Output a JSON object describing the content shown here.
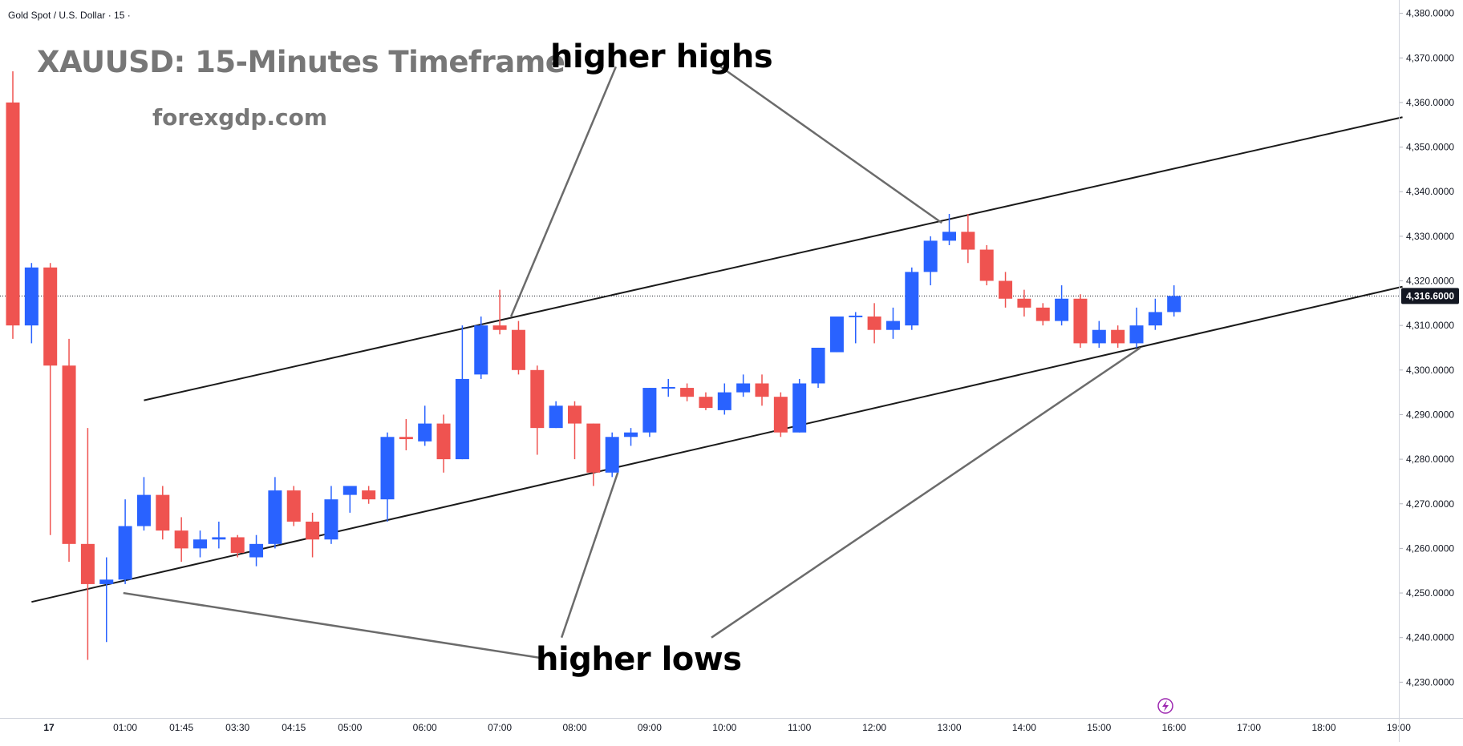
{
  "header": {
    "symbol": "Gold Spot / U.S. Dollar · 15 ·",
    "title": "XAUUSD: 15-Minutes Timeframe",
    "site": "forexgdp.com"
  },
  "annotations": {
    "higher_highs": "higher highs",
    "higher_lows": "higher lows"
  },
  "colors": {
    "up": "#2962ff",
    "down": "#ef5350",
    "last_price_badge": "#131722",
    "text": "#131722"
  },
  "chart_data": {
    "type": "candlestick",
    "timeframe": "15",
    "last_price": 4316.6,
    "last_price_label": "4,316.6000",
    "ylim": [
      4224,
      4386
    ],
    "y_ticks": [
      {
        "value": 4380,
        "label": "4,380.0000"
      },
      {
        "value": 4370,
        "label": "4,370.0000"
      },
      {
        "value": 4360,
        "label": "4,360.0000"
      },
      {
        "value": 4350,
        "label": "4,350.0000"
      },
      {
        "value": 4340,
        "label": "4,340.0000"
      },
      {
        "value": 4330,
        "label": "4,330.0000"
      },
      {
        "value": 4320,
        "label": "4,320.0000"
      },
      {
        "value": 4310,
        "label": "4,310.0000"
      },
      {
        "value": 4300,
        "label": "4,300.0000"
      },
      {
        "value": 4290,
        "label": "4,290.0000"
      },
      {
        "value": 4280,
        "label": "4,280.0000"
      },
      {
        "value": 4270,
        "label": "4,270.0000"
      },
      {
        "value": 4260,
        "label": "4,260.0000"
      },
      {
        "value": 4250,
        "label": "4,250.0000"
      },
      {
        "value": 4240,
        "label": "4,240.0000"
      },
      {
        "value": 4230,
        "label": "4,230.0000"
      }
    ],
    "x_ticks": [
      {
        "index": 0,
        "label": "17"
      },
      {
        "index": 6,
        "label": "01:00"
      },
      {
        "index": 9,
        "label": "01:45"
      },
      {
        "index": 12,
        "label": "03:30"
      },
      {
        "index": 15,
        "label": "04:15"
      },
      {
        "index": 18,
        "label": "05:00"
      },
      {
        "index": 22,
        "label": "06:00"
      },
      {
        "index": 26,
        "label": "07:00"
      },
      {
        "index": 30,
        "label": "08:00"
      },
      {
        "index": 34,
        "label": "09:00"
      },
      {
        "index": 38,
        "label": "10:00"
      },
      {
        "index": 42,
        "label": "11:00"
      },
      {
        "index": 46,
        "label": "12:00"
      },
      {
        "index": 50,
        "label": "13:00"
      },
      {
        "index": 54,
        "label": "14:00"
      },
      {
        "index": 58,
        "label": "15:00"
      },
      {
        "index": 62,
        "label": "16:00"
      },
      {
        "index": 66,
        "label": "17:00"
      },
      {
        "index": 70,
        "label": "18:00"
      },
      {
        "index": 74,
        "label": "19:00"
      }
    ],
    "candles": [
      {
        "o": 4360.0,
        "h": 4367.0,
        "l": 4307.0,
        "c": 4310.0
      },
      {
        "o": 4310.0,
        "h": 4324.0,
        "l": 4306.0,
        "c": 4323.0
      },
      {
        "o": 4323.0,
        "h": 4324.0,
        "l": 4263.0,
        "c": 4301.0
      },
      {
        "o": 4301.0,
        "h": 4307.0,
        "l": 4257.0,
        "c": 4261.0
      },
      {
        "o": 4261.0,
        "h": 4287.0,
        "l": 4235.0,
        "c": 4252.0
      },
      {
        "o": 4252.0,
        "h": 4258.0,
        "l": 4239.0,
        "c": 4253.0
      },
      {
        "o": 4253.0,
        "h": 4271.0,
        "l": 4252.0,
        "c": 4265.0
      },
      {
        "o": 4265.0,
        "h": 4276.0,
        "l": 4264.0,
        "c": 4272.0
      },
      {
        "o": 4272.0,
        "h": 4274.0,
        "l": 4262.0,
        "c": 4264.0
      },
      {
        "o": 4264.0,
        "h": 4267.0,
        "l": 4257.0,
        "c": 4260.0
      },
      {
        "o": 4260.0,
        "h": 4264.0,
        "l": 4258.0,
        "c": 4262.0
      },
      {
        "o": 4262.0,
        "h": 4266.0,
        "l": 4260.0,
        "c": 4262.5
      },
      {
        "o": 4262.5,
        "h": 4263.0,
        "l": 4258.0,
        "c": 4259.0
      },
      {
        "o": 4258.0,
        "h": 4263.0,
        "l": 4256.0,
        "c": 4261.0
      },
      {
        "o": 4261.0,
        "h": 4276.0,
        "l": 4260.0,
        "c": 4273.0
      },
      {
        "o": 4273.0,
        "h": 4274.0,
        "l": 4265.0,
        "c": 4266.0
      },
      {
        "o": 4266.0,
        "h": 4268.0,
        "l": 4258.0,
        "c": 4262.0
      },
      {
        "o": 4262.0,
        "h": 4274.0,
        "l": 4261.0,
        "c": 4271.0
      },
      {
        "o": 4272.0,
        "h": 4274.0,
        "l": 4268.0,
        "c": 4274.0
      },
      {
        "o": 4273.0,
        "h": 4274.0,
        "l": 4270.0,
        "c": 4271.0
      },
      {
        "o": 4271.0,
        "h": 4286.0,
        "l": 4266.0,
        "c": 4285.0
      },
      {
        "o": 4285.0,
        "h": 4289.0,
        "l": 4282.0,
        "c": 4284.5
      },
      {
        "o": 4284.0,
        "h": 4292.0,
        "l": 4283.0,
        "c": 4288.0
      },
      {
        "o": 4288.0,
        "h": 4290.0,
        "l": 4277.0,
        "c": 4280.0
      },
      {
        "o": 4280.0,
        "h": 4310.0,
        "l": 4280.0,
        "c": 4298.0
      },
      {
        "o": 4299.0,
        "h": 4312.0,
        "l": 4298.0,
        "c": 4310.0
      },
      {
        "o": 4310.0,
        "h": 4318.0,
        "l": 4308.0,
        "c": 4309.0
      },
      {
        "o": 4309.0,
        "h": 4311.0,
        "l": 4299.0,
        "c": 4300.0
      },
      {
        "o": 4300.0,
        "h": 4301.0,
        "l": 4281.0,
        "c": 4287.0
      },
      {
        "o": 4287.0,
        "h": 4293.0,
        "l": 4287.0,
        "c": 4292.0
      },
      {
        "o": 4292.0,
        "h": 4293.0,
        "l": 4280.0,
        "c": 4288.0
      },
      {
        "o": 4288.0,
        "h": 4288.0,
        "l": 4274.0,
        "c": 4277.0
      },
      {
        "o": 4277.0,
        "h": 4286.0,
        "l": 4276.0,
        "c": 4285.0
      },
      {
        "o": 4285.0,
        "h": 4287.0,
        "l": 4283.0,
        "c": 4286.0
      },
      {
        "o": 4286.0,
        "h": 4296.0,
        "l": 4285.0,
        "c": 4296.0
      },
      {
        "o": 4296.0,
        "h": 4298.0,
        "l": 4294.0,
        "c": 4296.2
      },
      {
        "o": 4296.0,
        "h": 4297.0,
        "l": 4293.0,
        "c": 4294.0
      },
      {
        "o": 4294.0,
        "h": 4295.0,
        "l": 4291.0,
        "c": 4291.5
      },
      {
        "o": 4291.0,
        "h": 4297.0,
        "l": 4290.0,
        "c": 4295.0
      },
      {
        "o": 4295.0,
        "h": 4299.0,
        "l": 4294.0,
        "c": 4297.0
      },
      {
        "o": 4297.0,
        "h": 4299.0,
        "l": 4292.0,
        "c": 4294.0
      },
      {
        "o": 4294.0,
        "h": 4295.0,
        "l": 4285.0,
        "c": 4286.0
      },
      {
        "o": 4286.0,
        "h": 4298.0,
        "l": 4286.0,
        "c": 4297.0
      },
      {
        "o": 4297.0,
        "h": 4305.0,
        "l": 4296.0,
        "c": 4305.0
      },
      {
        "o": 4304.0,
        "h": 4312.0,
        "l": 4304.0,
        "c": 4312.0
      },
      {
        "o": 4312.0,
        "h": 4313.0,
        "l": 4306.0,
        "c": 4312.2
      },
      {
        "o": 4312.0,
        "h": 4315.0,
        "l": 4306.0,
        "c": 4309.0
      },
      {
        "o": 4309.0,
        "h": 4314.0,
        "l": 4307.0,
        "c": 4311.0
      },
      {
        "o": 4310.0,
        "h": 4323.0,
        "l": 4309.0,
        "c": 4322.0
      },
      {
        "o": 4322.0,
        "h": 4330.0,
        "l": 4319.0,
        "c": 4329.0
      },
      {
        "o": 4329.0,
        "h": 4335.0,
        "l": 4328.0,
        "c": 4331.0
      },
      {
        "o": 4331.0,
        "h": 4335.0,
        "l": 4324.0,
        "c": 4327.0
      },
      {
        "o": 4327.0,
        "h": 4328.0,
        "l": 4319.0,
        "c": 4320.0
      },
      {
        "o": 4320.0,
        "h": 4322.0,
        "l": 4314.0,
        "c": 4316.0
      },
      {
        "o": 4316.0,
        "h": 4318.0,
        "l": 4312.0,
        "c": 4314.0
      },
      {
        "o": 4314.0,
        "h": 4315.0,
        "l": 4310.0,
        "c": 4311.0
      },
      {
        "o": 4311.0,
        "h": 4319.0,
        "l": 4310.0,
        "c": 4316.0
      },
      {
        "o": 4316.0,
        "h": 4317.0,
        "l": 4305.0,
        "c": 4306.0
      },
      {
        "o": 4306.0,
        "h": 4311.0,
        "l": 4305.0,
        "c": 4309.0
      },
      {
        "o": 4309.0,
        "h": 4310.0,
        "l": 4305.0,
        "c": 4306.0
      },
      {
        "o": 4306.0,
        "h": 4314.0,
        "l": 4305.0,
        "c": 4310.0
      },
      {
        "o": 4310.0,
        "h": 4316.0,
        "l": 4309.0,
        "c": 4313.0
      },
      {
        "o": 4313.0,
        "h": 4319.0,
        "l": 4312.0,
        "c": 4316.6
      }
    ],
    "trendlines": [
      {
        "name": "upper-channel-line",
        "x1": 7,
        "y1": 4293.2,
        "x2": 74.2,
        "y2": 4356.7
      },
      {
        "name": "lower-channel-line",
        "x1": 1,
        "y1": 4248.0,
        "x2": 74.2,
        "y2": 4318.7
      }
    ],
    "pointer_lines": [
      {
        "group": "higher_highs",
        "x1": 32.2,
        "y1": 4368.0,
        "x2": 26.6,
        "y2": 4312.0
      },
      {
        "group": "higher_highs",
        "x1": 37.8,
        "y1": 4368.0,
        "x2": 49.6,
        "y2": 4333.0
      },
      {
        "group": "higher_lows",
        "x1": 5.9,
        "y1": 4250.0,
        "x2": 28.1,
        "y2": 4235.5
      },
      {
        "group": "higher_lows",
        "x1": 29.3,
        "y1": 4240.0,
        "x2": 32.3,
        "y2": 4277.0
      },
      {
        "group": "higher_lows",
        "x1": 37.3,
        "y1": 4240.0,
        "x2": 60.2,
        "y2": 4305.0
      }
    ]
  }
}
